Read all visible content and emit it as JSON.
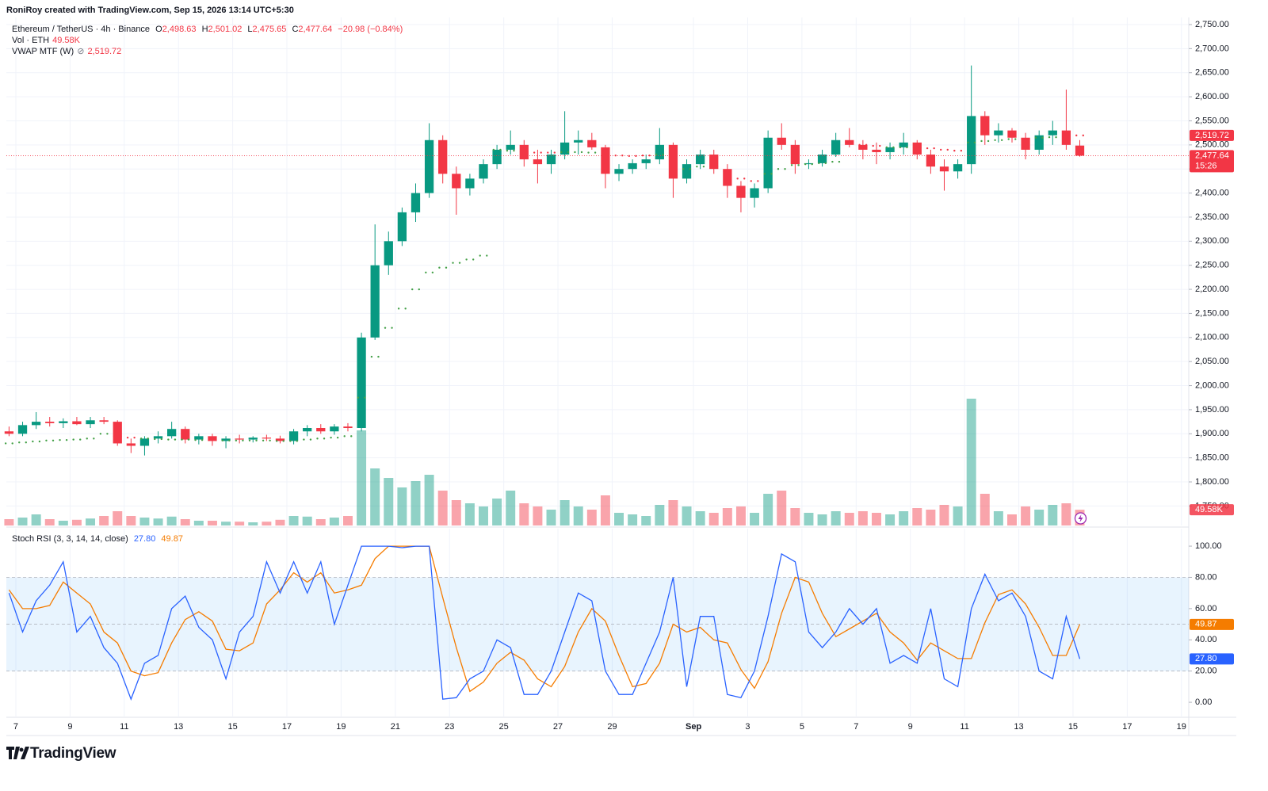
{
  "header": "RoniRoy created with TradingView.com, Sep 15, 2026 13:14 UTC+5:30",
  "footer": "TradingView",
  "chart_data": [
    {
      "type": "candlestick",
      "legend": {
        "symbol": "Ethereum / TetherUS · 4h · Binance",
        "o_label": "O",
        "open": "2,498.63",
        "h_label": "H",
        "high": "2,501.02",
        "l_label": "L",
        "low": "2,475.65",
        "c_label": "C",
        "close": "2,477.64",
        "change": "−20.98 (−0.84%)",
        "vol_label": "Vol · ETH",
        "vol": "49.58K",
        "vwap_label": "VWAP MTF (W)",
        "vwap": "2,519.72",
        "countdown": "15:26"
      },
      "x": [
        6.75,
        7.25,
        7.75,
        8.25,
        8.75,
        9.25,
        9.75,
        10.25,
        10.75,
        11.25,
        11.75,
        12.25,
        12.75,
        13.25,
        13.75,
        14.25,
        14.75,
        15.25,
        15.75,
        16.25,
        16.75,
        17.25,
        17.75,
        18.25,
        18.75,
        19.25,
        19.75,
        20.25,
        20.75,
        21.25,
        21.75,
        22.25,
        22.75,
        23.25,
        23.75,
        24.25,
        24.75,
        25.25,
        25.75,
        26.25,
        26.75,
        27.25,
        27.75,
        28.25,
        28.75,
        29.25,
        29.75,
        30.25,
        30.75,
        31.25,
        31.75,
        32.25,
        32.75,
        33.25,
        33.75,
        34.25,
        34.75,
        35.25,
        35.75,
        36.25,
        36.75,
        37.25,
        37.75,
        38.25,
        38.75,
        39.25,
        39.75,
        40.25,
        40.75,
        41.25,
        41.75,
        42.25,
        42.75,
        43.25,
        43.75,
        44.25,
        44.75,
        45.25,
        45.75,
        46.25
      ],
      "open": [
        1905,
        1900,
        1918,
        1925,
        1922,
        1926,
        1920,
        1928,
        1925,
        1880,
        1875,
        1890,
        1895,
        1910,
        1888,
        1895,
        1885,
        1890,
        1888,
        1892,
        1890,
        1885,
        1905,
        1912,
        1905,
        1915,
        1912,
        2100,
        2250,
        2300,
        2360,
        2400,
        2510,
        2440,
        2410,
        2430,
        2460,
        2490,
        2500,
        2470,
        2460,
        2480,
        2505,
        2510,
        2495,
        2440,
        2450,
        2462,
        2470,
        2500,
        2430,
        2460,
        2480,
        2450,
        2415,
        2390,
        2410,
        2515,
        2500,
        2460,
        2462,
        2480,
        2510,
        2500,
        2490,
        2485,
        2495,
        2505,
        2480,
        2455,
        2445,
        2460,
        2560,
        2520,
        2530,
        2515,
        2490,
        2520,
        2530,
        2498.63
      ],
      "high": [
        1915,
        1925,
        1945,
        1935,
        1932,
        1935,
        1935,
        1935,
        1928,
        1890,
        1895,
        1905,
        1925,
        1915,
        1900,
        1900,
        1895,
        1898,
        1895,
        1898,
        1896,
        1910,
        1918,
        1920,
        1920,
        1922,
        2110,
        2335,
        2320,
        2370,
        2420,
        2545,
        2520,
        2455,
        2440,
        2470,
        2500,
        2530,
        2510,
        2490,
        2490,
        2570,
        2530,
        2525,
        2500,
        2460,
        2470,
        2480,
        2535,
        2505,
        2470,
        2490,
        2490,
        2460,
        2425,
        2420,
        2530,
        2545,
        2510,
        2470,
        2490,
        2525,
        2535,
        2510,
        2505,
        2505,
        2525,
        2510,
        2490,
        2470,
        2470,
        2665,
        2570,
        2545,
        2535,
        2525,
        2530,
        2550,
        2615,
        2510
      ],
      "low": [
        1895,
        1895,
        1910,
        1915,
        1912,
        1918,
        1912,
        1920,
        1875,
        1860,
        1855,
        1880,
        1890,
        1880,
        1878,
        1875,
        1870,
        1880,
        1882,
        1885,
        1880,
        1878,
        1895,
        1900,
        1898,
        1905,
        1905,
        2095,
        2230,
        2290,
        2340,
        2390,
        2420,
        2355,
        2395,
        2420,
        2450,
        2480,
        2455,
        2420,
        2440,
        2470,
        2480,
        2490,
        2410,
        2425,
        2440,
        2450,
        2460,
        2390,
        2420,
        2450,
        2440,
        2390,
        2360,
        2370,
        2400,
        2490,
        2440,
        2450,
        2455,
        2475,
        2495,
        2470,
        2460,
        2470,
        2480,
        2470,
        2440,
        2405,
        2430,
        2440,
        2500,
        2505,
        2505,
        2470,
        2480,
        2500,
        2490,
        2475.65
      ],
      "close": [
        1900,
        1918,
        1925,
        1922,
        1926,
        1920,
        1928,
        1925,
        1880,
        1875,
        1890,
        1895,
        1910,
        1888,
        1895,
        1885,
        1890,
        1888,
        1892,
        1890,
        1885,
        1905,
        1912,
        1905,
        1915,
        1912,
        2100,
        2250,
        2300,
        2360,
        2400,
        2510,
        2440,
        2410,
        2430,
        2460,
        2490,
        2500,
        2470,
        2460,
        2480,
        2505,
        2510,
        2495,
        2440,
        2450,
        2462,
        2470,
        2500,
        2430,
        2460,
        2480,
        2450,
        2415,
        2390,
        2410,
        2515,
        2500,
        2460,
        2462,
        2480,
        2510,
        2500,
        2490,
        2485,
        2495,
        2505,
        2480,
        2455,
        2445,
        2460,
        2560,
        2520,
        2530,
        2515,
        2490,
        2520,
        2530,
        2500,
        2477.64
      ],
      "volume": [
        20,
        25,
        35,
        20,
        15,
        18,
        22,
        30,
        45,
        30,
        25,
        22,
        28,
        20,
        15,
        15,
        12,
        12,
        10,
        12,
        18,
        30,
        28,
        20,
        25,
        30,
        300,
        180,
        150,
        120,
        140,
        160,
        110,
        80,
        70,
        60,
        85,
        110,
        70,
        60,
        50,
        80,
        60,
        50,
        95,
        40,
        35,
        30,
        65,
        80,
        60,
        45,
        40,
        55,
        60,
        40,
        100,
        110,
        55,
        40,
        35,
        45,
        40,
        45,
        40,
        35,
        45,
        55,
        50,
        65,
        60,
        400,
        100,
        45,
        35,
        60,
        50,
        65,
        70,
        49.58
      ],
      "vwap": [
        1880,
        1882,
        1884,
        1886,
        1887,
        1888,
        1890,
        1900,
        1895,
        1892,
        1890,
        1889,
        1888,
        1888,
        1887,
        1887,
        1886,
        1886,
        1886,
        1886,
        1885,
        1885,
        1888,
        1890,
        1892,
        1895,
        1975,
        2060,
        2120,
        2160,
        2200,
        2235,
        2245,
        2255,
        2262,
        2270,
        2490,
        2488,
        2486,
        2484,
        2484,
        2485,
        2485,
        2484,
        2480,
        2478,
        2477,
        2478,
        2480,
        2478,
        2450,
        2455,
        2455,
        2445,
        2430,
        2425,
        2440,
        2450,
        2458,
        2460,
        2462,
        2465,
        2505,
        2500,
        2498,
        2495,
        2495,
        2495,
        2493,
        2490,
        2488,
        2505,
        2508,
        2510,
        2512,
        2512,
        2515,
        2516,
        2518,
        2519.72
      ],
      "up_color": "#089981",
      "down_color": "#f23645",
      "vwap_up_color": "#43a047",
      "vwap_down_color": "#f23645",
      "vlim": [
        0,
        450
      ],
      "xlim": [
        6.65,
        50.27
      ],
      "xticks": [
        7,
        9,
        11,
        13,
        15,
        17,
        19,
        21,
        23,
        25,
        27,
        29,
        {
          "value": 32,
          "label": "Sep"
        },
        {
          "value": 34,
          "label": "3"
        },
        {
          "value": 36,
          "label": "5"
        },
        {
          "value": 38,
          "label": "7"
        },
        {
          "value": 40,
          "label": "9"
        },
        {
          "value": 42,
          "label": "11"
        },
        {
          "value": 44,
          "label": "13"
        },
        {
          "value": 46,
          "label": "15"
        },
        {
          "value": 48,
          "label": "17"
        },
        {
          "value": 50,
          "label": "19"
        }
      ],
      "ylim": [
        1709.5,
        2764.8
      ],
      "yticks": [
        {
          "value": 1750,
          "label": "1,750.00"
        },
        {
          "value": 1800,
          "label": "1,800.00"
        },
        {
          "value": 1850,
          "label": "1,850.00"
        },
        {
          "value": 1900,
          "label": "1,900.00"
        },
        {
          "value": 1950,
          "label": "1,950.00"
        },
        {
          "value": 2000,
          "label": "2,000.00"
        },
        {
          "value": 2050,
          "label": "2,050.00"
        },
        {
          "value": 2100,
          "label": "2,100.00"
        },
        {
          "value": 2150,
          "label": "2,150.00"
        },
        {
          "value": 2200,
          "label": "2,200.00"
        },
        {
          "value": 2250,
          "label": "2,250.00"
        },
        {
          "value": 2300,
          "label": "2,300.00"
        },
        {
          "value": 2350,
          "label": "2,350.00"
        },
        {
          "value": 2400,
          "label": "2,400.00"
        },
        {
          "value": 2450,
          "label": "2,450.00"
        },
        {
          "value": 2500,
          "label": "2,500.00"
        },
        {
          "value": 2550,
          "label": "2,550.00"
        },
        {
          "value": 2600,
          "label": "2,600.00"
        },
        {
          "value": 2650,
          "label": "2,650.00"
        },
        {
          "value": 2700,
          "label": "2,700.00"
        },
        {
          "value": 2750,
          "label": "2,750.00"
        }
      ],
      "grid": true
    },
    {
      "type": "line",
      "title": "Stoch RSI (3, 3, 14, 14, close)",
      "series": [
        {
          "color": "#2962ff",
          "label": "27.80",
          "values": [
            70,
            45,
            65,
            75,
            90,
            45,
            55,
            35,
            25,
            2,
            25,
            30,
            60,
            68,
            48,
            40,
            15,
            45,
            55,
            90,
            70,
            90,
            70,
            90,
            50,
            75,
            100,
            100,
            100,
            99,
            100,
            100,
            2,
            3,
            15,
            20,
            40,
            35,
            5,
            5,
            20,
            45,
            70,
            65,
            20,
            5,
            5,
            25,
            45,
            80,
            10,
            55,
            55,
            5,
            3,
            20,
            55,
            95,
            90,
            45,
            35,
            45,
            60,
            50,
            60,
            25,
            30,
            25,
            60,
            15,
            10,
            60,
            82,
            65,
            70,
            55,
            20,
            15,
            55,
            27.8
          ]
        },
        {
          "color": "#f57c00",
          "label": "49.87",
          "values": [
            72,
            60,
            60,
            62,
            77,
            70,
            63,
            45,
            38,
            20,
            17,
            19,
            38,
            53,
            58,
            52,
            34,
            33,
            38,
            63,
            72,
            83,
            77,
            83,
            70,
            72,
            75,
            92,
            100,
            100,
            100,
            100,
            67,
            35,
            7,
            13,
            25,
            32,
            27,
            15,
            10,
            23,
            45,
            60,
            52,
            30,
            10,
            12,
            25,
            50,
            45,
            48,
            40,
            38,
            21,
            9,
            26,
            57,
            80,
            77,
            57,
            42,
            47,
            52,
            57,
            45,
            38,
            27,
            38,
            33,
            28,
            28,
            51,
            69,
            72,
            63,
            48,
            30,
            30,
            49.87
          ]
        }
      ],
      "band": [
        20,
        80
      ],
      "midline": 50,
      "band_color": "rgba(33,150,243,0.1)",
      "ylim": [
        -9.6,
        111.2
      ],
      "yticks": [
        {
          "value": 0,
          "label": "0.00"
        },
        {
          "value": 20,
          "label": "20.00"
        },
        {
          "value": 40,
          "label": "40.00"
        },
        {
          "value": 60,
          "label": "60.00"
        },
        {
          "value": 80,
          "label": "80.00"
        },
        {
          "value": 100,
          "label": "100.00"
        }
      ],
      "grid": true
    }
  ]
}
